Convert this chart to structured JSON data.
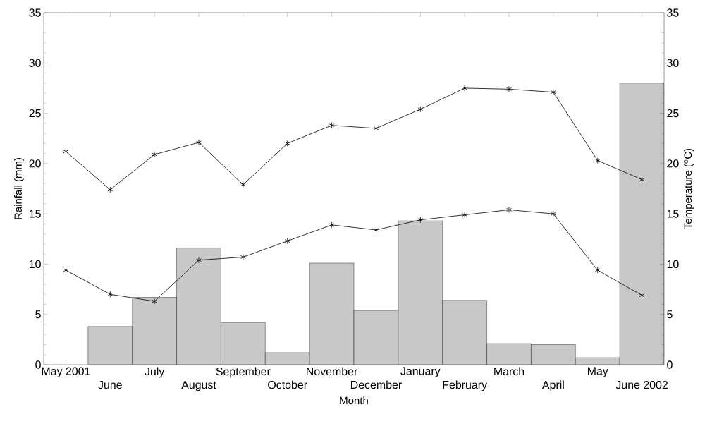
{
  "chart_data": {
    "type": "bar",
    "xlabel": "Month",
    "ylabel": "Rainfall (mm)",
    "y2label": "Temperature ($^{o}$C)",
    "categories": [
      "May 2001",
      "June",
      "July",
      "August",
      "September",
      "October",
      "November",
      "December",
      "January",
      "February",
      "March",
      "April",
      "May",
      "June 2002"
    ],
    "series": [
      {
        "color": "#c8c8c8",
        "values": [
          0,
          3.8,
          6.7,
          11.6,
          4.2,
          1.2,
          10.1,
          5.4,
          14.3,
          6.4,
          2.1,
          2.0,
          0.7,
          28.0
        ]
      },
      {
        "type": "line",
        "color": "#000000",
        "marker": "cross",
        "values": [
          21.2,
          17.4,
          20.9,
          22.1,
          17.9,
          22.0,
          23.8,
          23.5,
          25.4,
          27.5,
          27.4,
          27.1,
          20.3,
          18.4
        ]
      },
      {
        "type": "line",
        "color": "#000000",
        "marker": "cross",
        "values": [
          9.4,
          7.0,
          6.3,
          10.4,
          10.7,
          12.3,
          13.9,
          13.4,
          14.4,
          14.9,
          15.4,
          15.0,
          9.4,
          6.9
        ]
      }
    ],
    "ylim": [
      0,
      35
    ],
    "yticks": [
      0,
      5,
      10,
      15,
      20,
      25,
      30,
      35
    ],
    "y2lim": [
      0,
      35
    ],
    "y2ticks": [
      0,
      5,
      10,
      15,
      20,
      25,
      30,
      35
    ],
    "grid": false
  }
}
